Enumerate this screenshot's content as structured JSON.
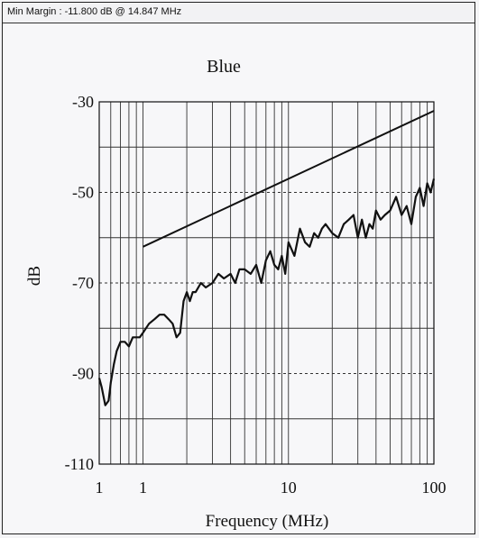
{
  "header": {
    "min_margin_text": "Min Margin : -11.800 dB @ 14.847 MHz"
  },
  "colors": {
    "background": "#f4f4f6",
    "line": "#111111",
    "grid": "#333333"
  },
  "chart_data": {
    "type": "line",
    "title": "Blue",
    "xlabel": "Frequency (MHz)",
    "ylabel": "dB",
    "x_scale": "log",
    "xlim": [
      0.5,
      100
    ],
    "ylim": [
      -110,
      -30
    ],
    "grid": true,
    "x_tick_labels": [
      "1",
      "1",
      "10",
      "100"
    ],
    "y_tick_labels": [
      "-30",
      "-50",
      "-70",
      "-90",
      "-110"
    ],
    "y_ticks": [
      -30,
      -50,
      -70,
      -90,
      -110
    ],
    "series": [
      {
        "x": [
          1,
          100
        ],
        "y": [
          -62,
          -32
        ]
      },
      {
        "x": [
          0.5,
          0.52,
          0.55,
          0.58,
          0.6,
          0.63,
          0.66,
          0.7,
          0.75,
          0.8,
          0.85,
          0.9,
          0.95,
          1.0,
          1.1,
          1.2,
          1.3,
          1.4,
          1.5,
          1.6,
          1.7,
          1.8,
          1.9,
          2.0,
          2.1,
          2.2,
          2.3,
          2.5,
          2.7,
          3.0,
          3.3,
          3.6,
          4.0,
          4.3,
          4.6,
          5.0,
          5.5,
          6.0,
          6.5,
          7.0,
          7.5,
          8.0,
          8.5,
          9.0,
          9.5,
          10,
          11,
          12,
          13,
          14,
          15,
          16,
          17,
          18,
          20,
          22,
          24,
          26,
          28,
          30,
          32,
          34,
          36,
          38,
          40,
          43,
          46,
          50,
          55,
          60,
          65,
          70,
          75,
          80,
          85,
          90,
          95,
          100
        ],
        "y": [
          -91,
          -93,
          -97,
          -96,
          -92,
          -88,
          -85,
          -83,
          -83,
          -84,
          -82,
          -82,
          -82,
          -81,
          -79,
          -78,
          -77,
          -77,
          -78,
          -79,
          -82,
          -81,
          -74,
          -72,
          -74,
          -72,
          -72,
          -70,
          -71,
          -70,
          -68,
          -69,
          -68,
          -70,
          -67,
          -67,
          -68,
          -66,
          -70,
          -65,
          -63,
          -66,
          -67,
          -64,
          -68,
          -61,
          -64,
          -58,
          -61,
          -62,
          -59,
          -60,
          -58,
          -57,
          -59,
          -60,
          -57,
          -56,
          -55,
          -60,
          -56,
          -60,
          -57,
          -58,
          -54,
          -56,
          -55,
          -54,
          -51,
          -55,
          -53,
          -57,
          -51,
          -49,
          -53,
          -48,
          -50,
          -47
        ]
      }
    ]
  }
}
